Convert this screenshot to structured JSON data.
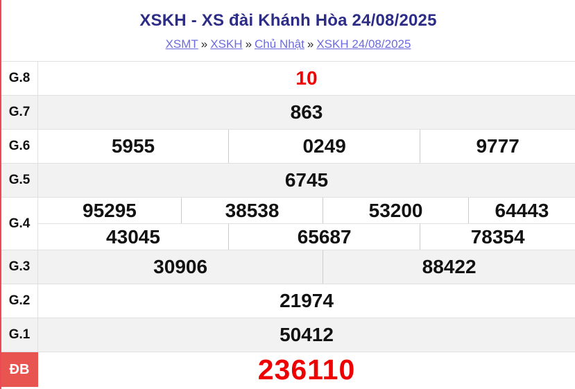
{
  "colors": {
    "left_border": "#ee4956",
    "title_color": "#2d2d87",
    "link_color": "#6b6bdf",
    "red_value": "#ee0000",
    "db_label_bg": "#e85450",
    "row_alt_bg": "#f2f2f2"
  },
  "header": {
    "title": "XSKH - XS đài Khánh Hòa 24/08/2025",
    "breadcrumb": {
      "separator": "»",
      "items": [
        "XSMT",
        "XSKH",
        "Chủ Nhật",
        "XSKH 24/08/2025"
      ]
    }
  },
  "results_table": {
    "rows": [
      {
        "label": "G.8",
        "cells": [
          "10"
        ]
      },
      {
        "label": "G.7",
        "cells": [
          "863"
        ]
      },
      {
        "label": "G.6",
        "cells": [
          "5955",
          "0249",
          "9777"
        ]
      },
      {
        "label": "G.5",
        "cells": [
          "6745"
        ]
      },
      {
        "label": "G.4",
        "lines": [
          [
            "95295",
            "38538",
            "53200",
            "64443"
          ],
          [
            "43045",
            "65687",
            "78354"
          ]
        ]
      },
      {
        "label": "G.3",
        "cells": [
          "30906",
          "88422"
        ]
      },
      {
        "label": "G.2",
        "cells": [
          "21974"
        ]
      },
      {
        "label": "G.1",
        "cells": [
          "50412"
        ]
      },
      {
        "label": "ĐB",
        "cells": [
          "236110"
        ]
      }
    ]
  }
}
